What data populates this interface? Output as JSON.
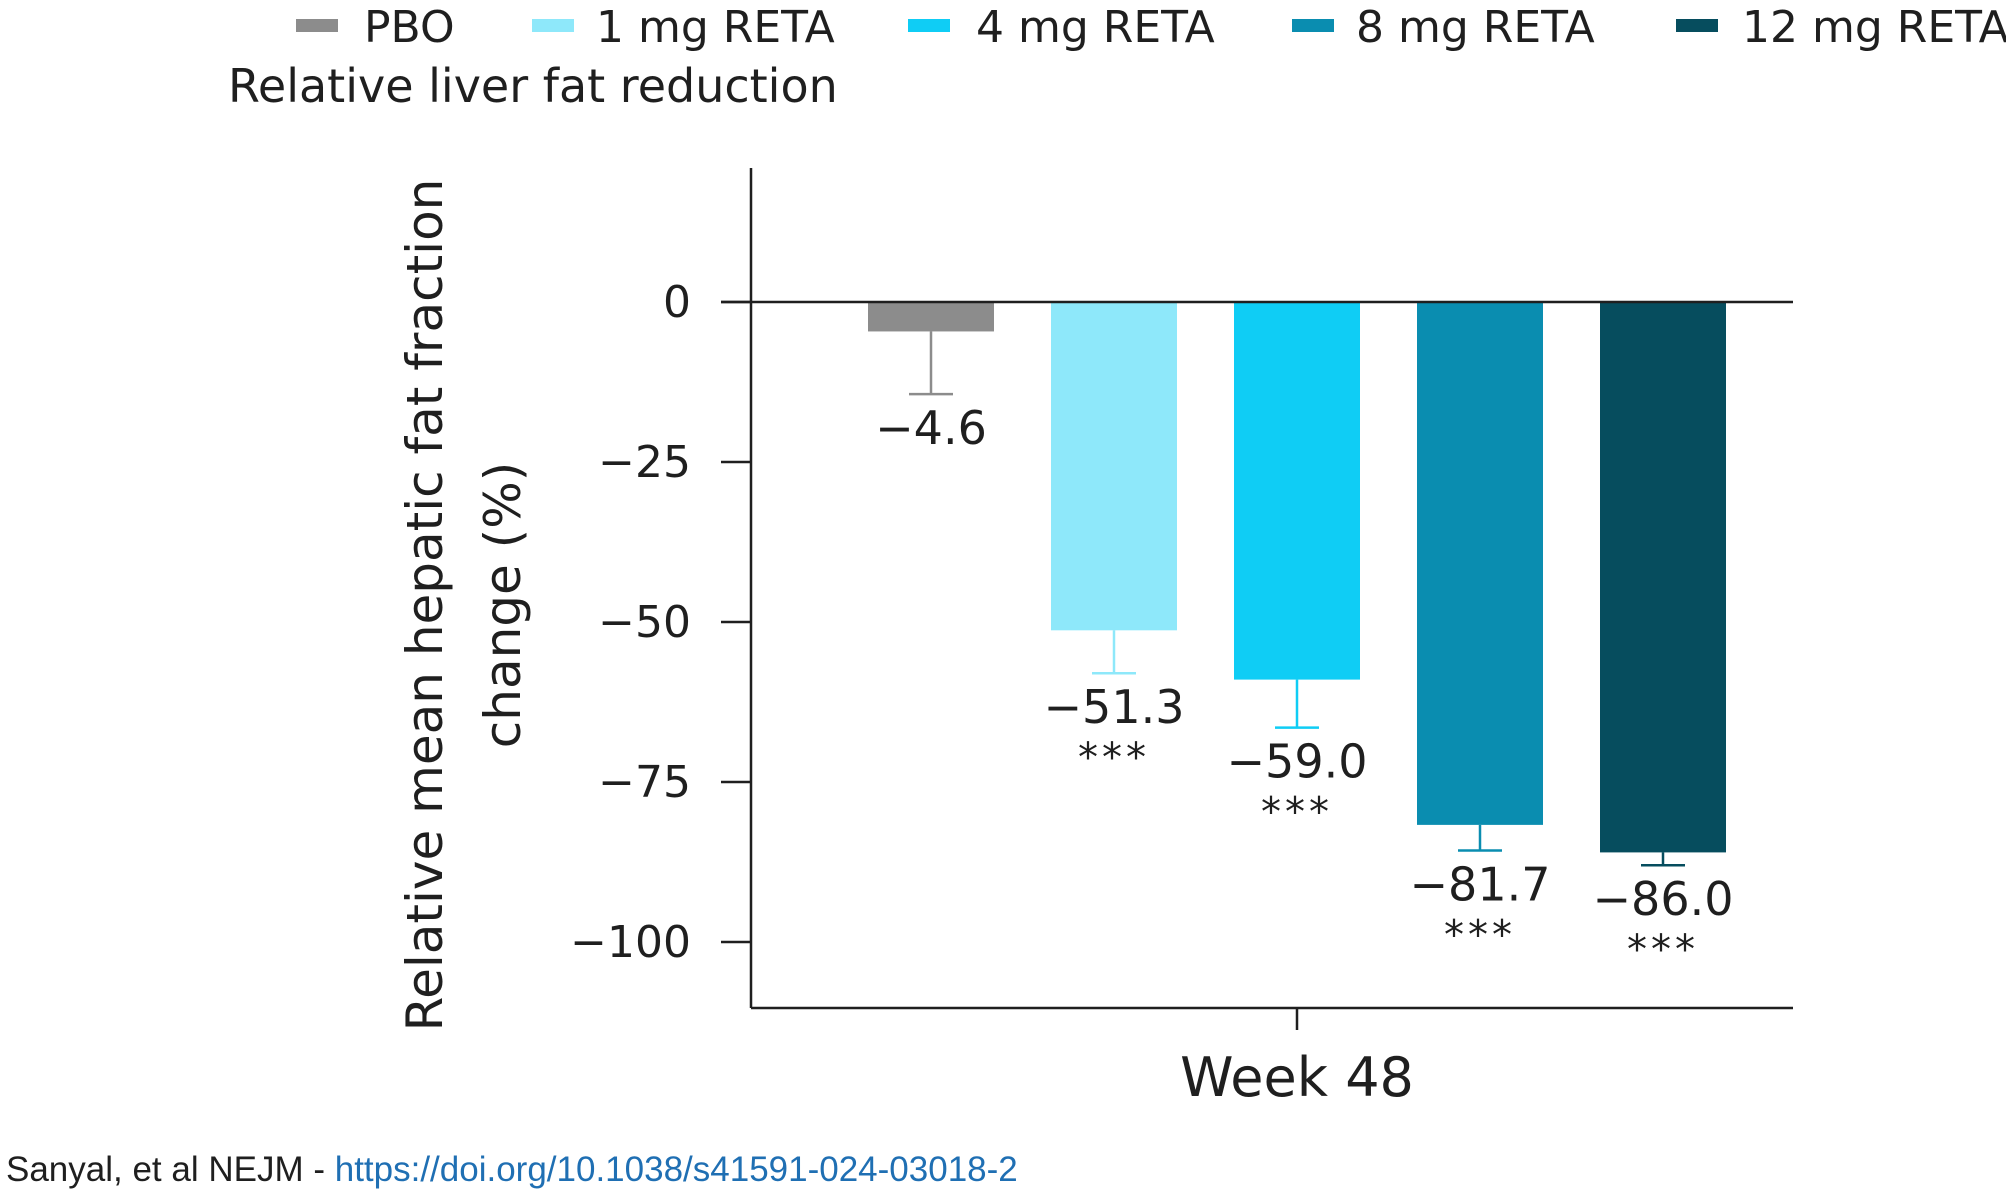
{
  "chart_data": {
    "type": "bar",
    "title": "Relative liver fat reduction",
    "ylabel_lines": [
      "Relative mean hepatic fat fraction",
      "change (%)"
    ],
    "xlabel": "",
    "categories": [
      "Week 48"
    ],
    "ylim": [
      -110,
      20
    ],
    "yticks": [
      0,
      -25,
      -50,
      -75,
      -100
    ],
    "ytick_labels": [
      "0",
      "−25",
      "−50",
      "−75",
      "−100"
    ],
    "grid": false,
    "legend_position": "top",
    "series": [
      {
        "name": "PBO",
        "values": [
          -4.6
        ],
        "error": [
          9.8
        ],
        "label": "−4.6",
        "significance": "",
        "color": "#8c8c8c"
      },
      {
        "name": "1 mg RETA",
        "values": [
          -51.3
        ],
        "error": [
          6.7
        ],
        "label": "−51.3",
        "significance": "***",
        "color": "#8ee8fa"
      },
      {
        "name": "4 mg RETA",
        "values": [
          -59.0
        ],
        "error": [
          7.5
        ],
        "label": "−59.0",
        "significance": "***",
        "color": "#0fcdf5"
      },
      {
        "name": "8 mg RETA",
        "values": [
          -81.7
        ],
        "error": [
          4.0
        ],
        "label": "−81.7",
        "significance": "***",
        "color": "#0a8db0"
      },
      {
        "name": "12 mg RETA",
        "values": [
          -86.0
        ],
        "error": [
          2.0
        ],
        "label": "−86.0",
        "significance": "***",
        "color": "#064d5e"
      }
    ]
  },
  "citation": {
    "text": "Sanyal, et al NEJM - ",
    "link": "https://doi.org/10.1038/s41591-024-03018-2"
  }
}
